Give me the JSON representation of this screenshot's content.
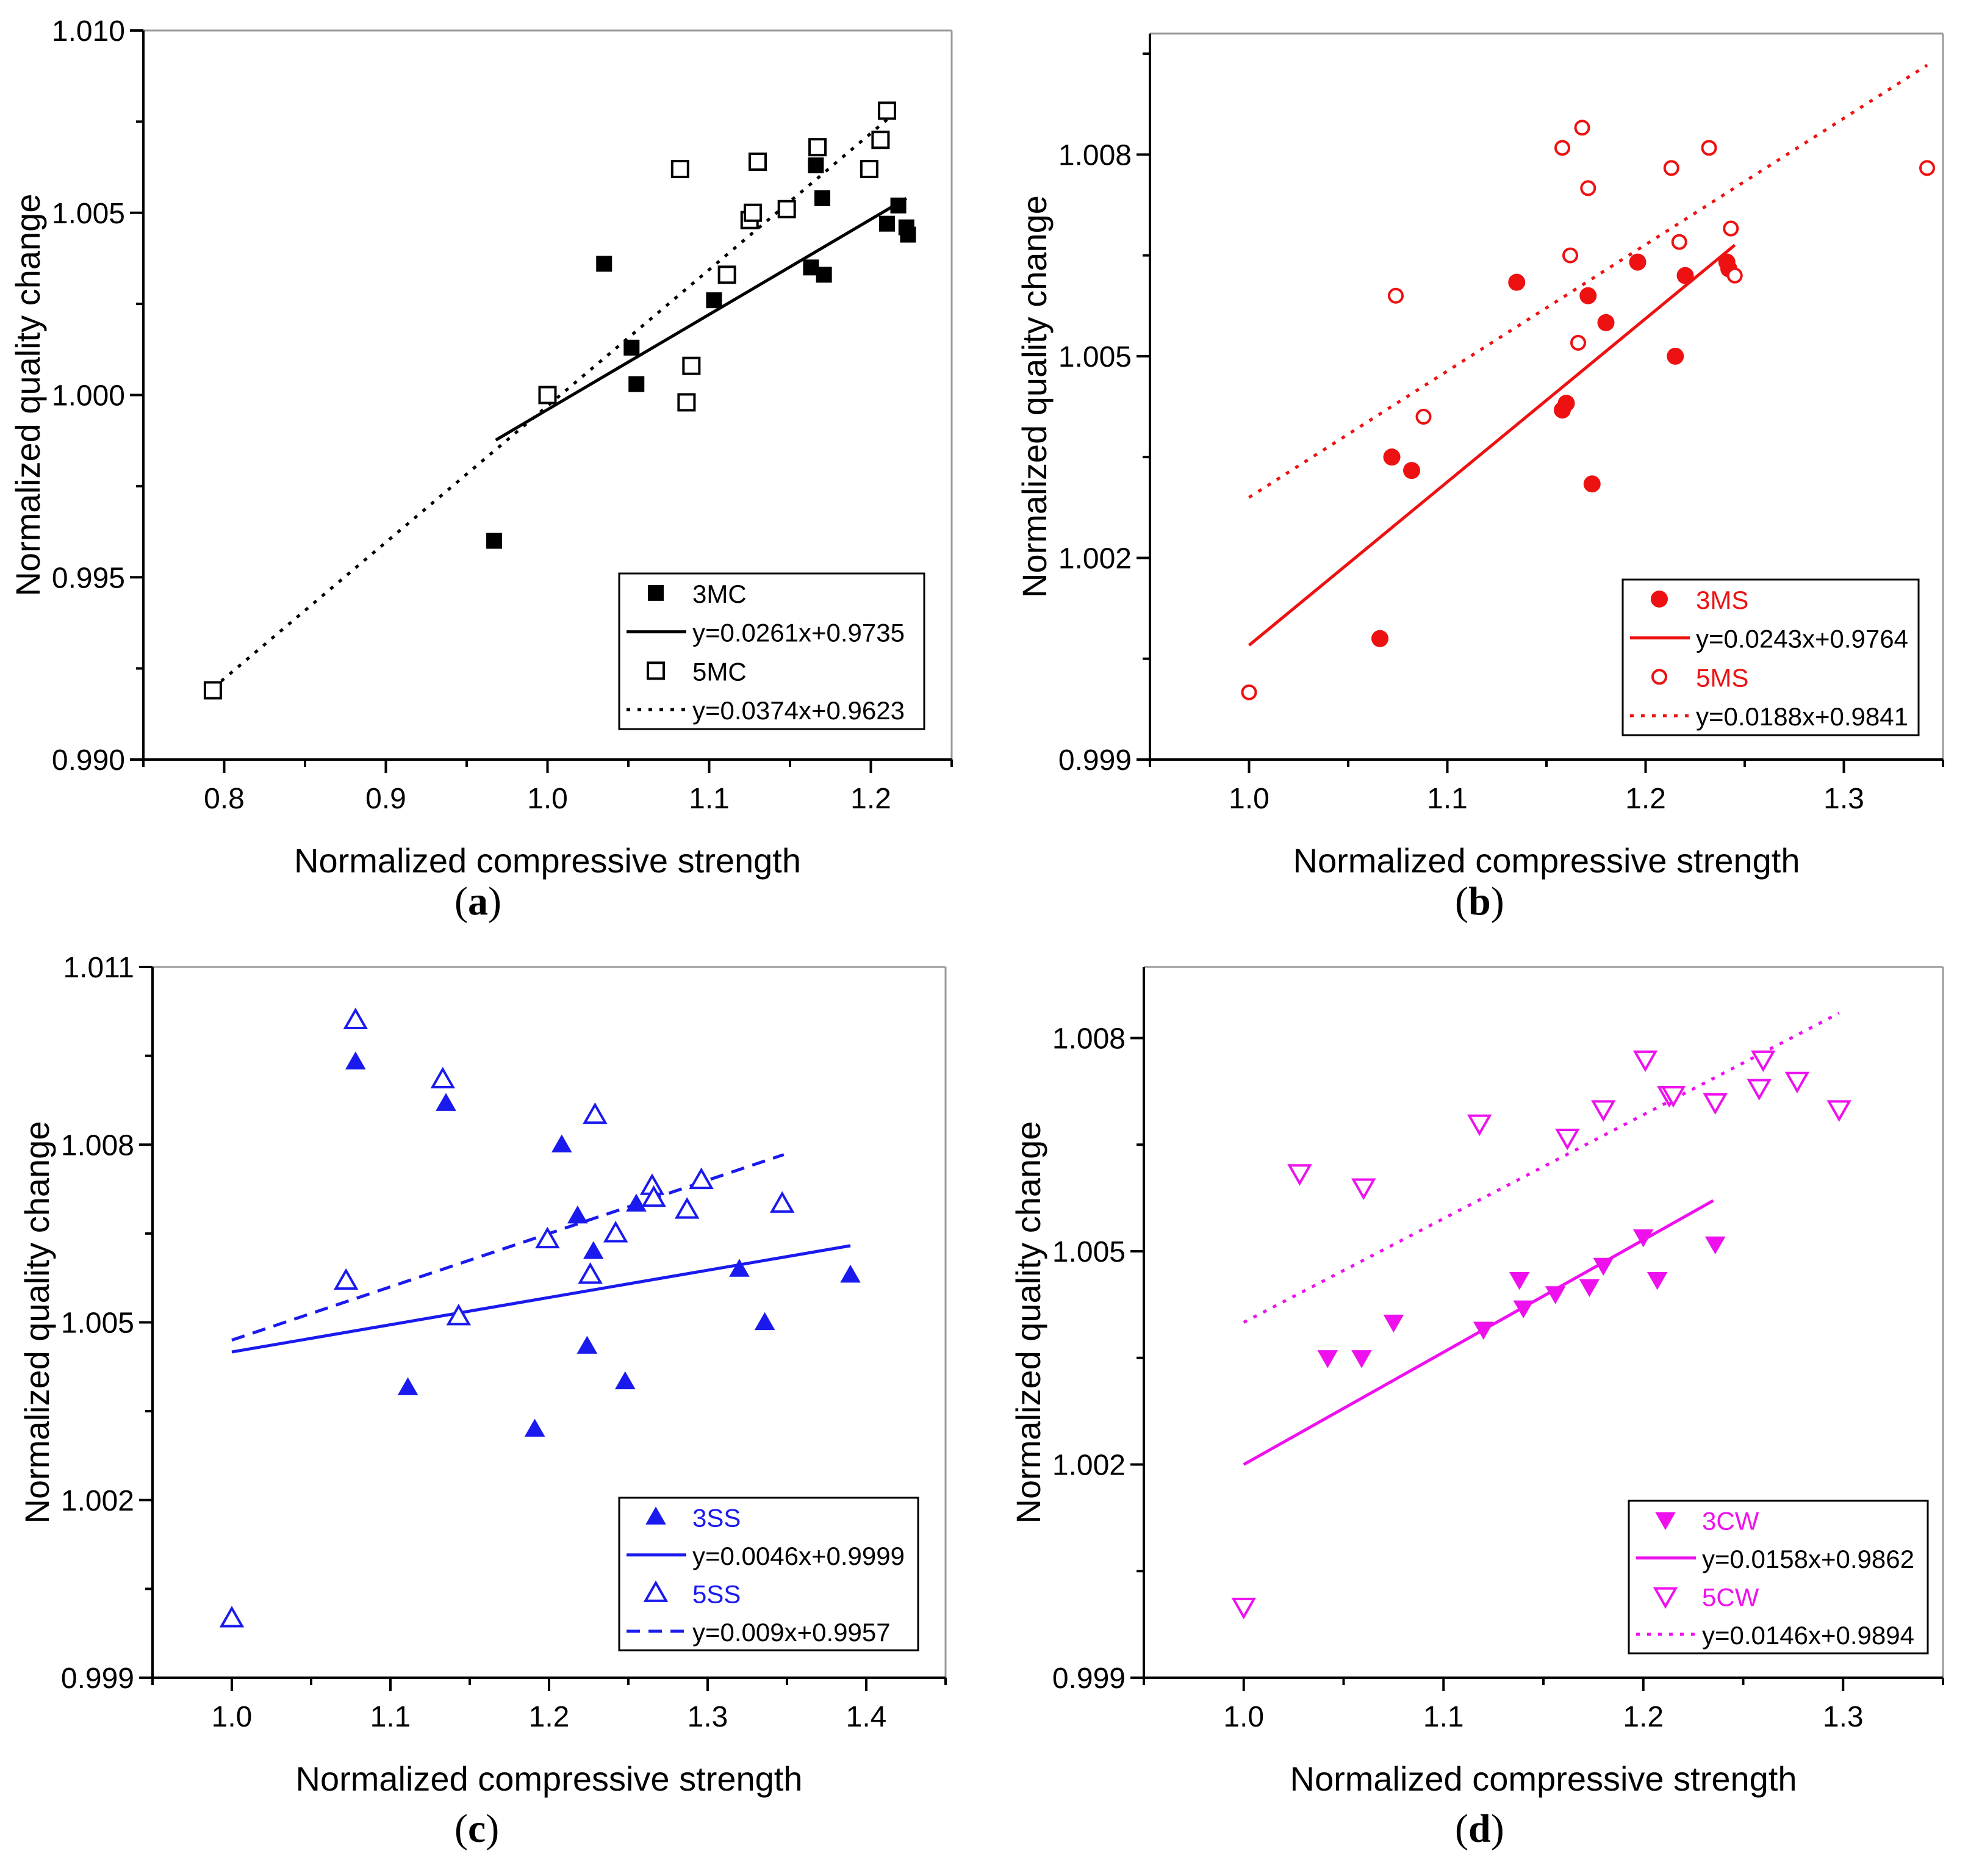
{
  "chart_data": [
    {
      "id": "a",
      "type": "scatter",
      "panel_label": "a",
      "xlabel": "Normalized compressive strength",
      "ylabel": "Normalized quality change",
      "xlim": [
        0.75,
        1.25
      ],
      "ylim": [
        0.99,
        1.01
      ],
      "xticks": [
        {
          "v": 0.8,
          "label": "0.8"
        },
        {
          "v": 0.9,
          "label": "0.9"
        },
        {
          "v": 1.0,
          "label": "1.0"
        },
        {
          "v": 1.1,
          "label": "1.1"
        },
        {
          "v": 1.2,
          "label": "1.2"
        }
      ],
      "yticks": [
        {
          "v": 0.99,
          "label": "0.990"
        },
        {
          "v": 0.995,
          "label": "0.995"
        },
        {
          "v": 1.0,
          "label": "1.000"
        },
        {
          "v": 1.005,
          "label": "1.005"
        },
        {
          "v": 1.01,
          "label": "1.010"
        }
      ],
      "legend_position": "bottom-right",
      "color": "#000000",
      "series": [
        {
          "name": "3MC",
          "marker": "square-filled",
          "fit_label": "y=0.0261x+0.9735",
          "fit_style": "solid",
          "fit_range": [
            0.968,
            1.222
          ],
          "slope": 0.0261,
          "intercept": 0.9735,
          "points": [
            [
              0.967,
              0.996
            ],
            [
              1.035,
              1.0036
            ],
            [
              1.052,
              1.0013
            ],
            [
              1.055,
              1.0003
            ],
            [
              1.103,
              1.0026
            ],
            [
              1.163,
              1.0035
            ],
            [
              1.166,
              1.0063
            ],
            [
              1.17,
              1.0054
            ],
            [
              1.171,
              1.0033
            ],
            [
              1.21,
              1.0047
            ],
            [
              1.217,
              1.0052
            ],
            [
              1.222,
              1.0046
            ],
            [
              1.223,
              1.0044
            ]
          ]
        },
        {
          "name": "5MC",
          "marker": "square-open",
          "fit_label": "y=0.0374x+0.9623",
          "fit_style": "dotted",
          "fit_range": [
            0.793,
            1.21
          ],
          "slope": 0.0374,
          "intercept": 0.9623,
          "points": [
            [
              0.793,
              0.9919
            ],
            [
              1.0,
              1.0
            ],
            [
              1.082,
              1.0062
            ],
            [
              1.086,
              0.9998
            ],
            [
              1.089,
              1.0008
            ],
            [
              1.111,
              1.0033
            ],
            [
              1.125,
              1.0048
            ],
            [
              1.127,
              1.005
            ],
            [
              1.13,
              1.0064
            ],
            [
              1.148,
              1.0051
            ],
            [
              1.167,
              1.0068
            ],
            [
              1.199,
              1.0062
            ],
            [
              1.206,
              1.007
            ],
            [
              1.21,
              1.0078
            ]
          ]
        }
      ]
    },
    {
      "id": "b",
      "type": "scatter",
      "panel_label": "b",
      "xlabel": "Normalized compressive strength",
      "ylabel": "Normalized quality change",
      "xlim": [
        0.95,
        1.35
      ],
      "ylim": [
        0.999,
        1.0098
      ],
      "xticks": [
        {
          "v": 1.0,
          "label": "1.0"
        },
        {
          "v": 1.1,
          "label": "1.1"
        },
        {
          "v": 1.2,
          "label": "1.2"
        },
        {
          "v": 1.3,
          "label": "1.3"
        }
      ],
      "yticks": [
        {
          "v": 0.999,
          "label": "0.999"
        },
        {
          "v": 1.002,
          "label": "1.002"
        },
        {
          "v": 1.005,
          "label": "1.005"
        },
        {
          "v": 1.008,
          "label": "1.008"
        }
      ],
      "legend_position": "bottom-right",
      "color": "#ee1111",
      "series": [
        {
          "name": "3MS",
          "marker": "circle-filled",
          "fit_label": "y=0.0243x+0.9764",
          "fit_style": "solid",
          "fit_range": [
            1.0,
            1.245
          ],
          "slope": 0.0243,
          "intercept": 0.9764,
          "points": [
            [
              1.066,
              1.0008
            ],
            [
              1.072,
              1.0035
            ],
            [
              1.082,
              1.0033
            ],
            [
              1.135,
              1.0061
            ],
            [
              1.158,
              1.0042
            ],
            [
              1.16,
              1.0043
            ],
            [
              1.171,
              1.0059
            ],
            [
              1.173,
              1.0031
            ],
            [
              1.18,
              1.0055
            ],
            [
              1.196,
              1.0064
            ],
            [
              1.215,
              1.005
            ],
            [
              1.22,
              1.0062
            ],
            [
              1.241,
              1.0064
            ],
            [
              1.242,
              1.0063
            ]
          ]
        },
        {
          "name": "5MS",
          "marker": "circle-open",
          "fit_label": "y=0.0188x+0.9841",
          "fit_style": "dotted",
          "fit_range": [
            1.0,
            1.342
          ],
          "slope": 0.0188,
          "intercept": 0.9841,
          "points": [
            [
              1.0,
              1.0
            ],
            [
              1.074,
              1.0059
            ],
            [
              1.088,
              1.0041
            ],
            [
              1.158,
              1.0081
            ],
            [
              1.162,
              1.0065
            ],
            [
              1.166,
              1.0052
            ],
            [
              1.168,
              1.0084
            ],
            [
              1.171,
              1.0075
            ],
            [
              1.213,
              1.0078
            ],
            [
              1.217,
              1.0067
            ],
            [
              1.232,
              1.0081
            ],
            [
              1.243,
              1.0069
            ],
            [
              1.245,
              1.0062
            ],
            [
              1.342,
              1.0078
            ]
          ]
        }
      ]
    },
    {
      "id": "c",
      "type": "scatter",
      "panel_label": "c",
      "xlabel": "Normalized compressive strength",
      "ylabel": "Normalized quality change",
      "xlim": [
        0.95,
        1.45
      ],
      "ylim": [
        0.999,
        1.011
      ],
      "xticks": [
        {
          "v": 1.0,
          "label": "1.0"
        },
        {
          "v": 1.1,
          "label": "1.1"
        },
        {
          "v": 1.2,
          "label": "1.2"
        },
        {
          "v": 1.3,
          "label": "1.3"
        },
        {
          "v": 1.4,
          "label": "1.4"
        }
      ],
      "yticks": [
        {
          "v": 0.999,
          "label": "0.999"
        },
        {
          "v": 1.002,
          "label": "1.002"
        },
        {
          "v": 1.005,
          "label": "1.005"
        },
        {
          "v": 1.008,
          "label": "1.008"
        },
        {
          "v": 1.011,
          "label": "1.011"
        }
      ],
      "legend_position": "bottom-right",
      "color": "#1a1aee",
      "series": [
        {
          "name": "3SS",
          "marker": "triangle-up-filled",
          "fit_label": "y=0.0046x+0.9999",
          "fit_style": "solid",
          "fit_range": [
            1.0,
            1.39
          ],
          "slope": 0.0046,
          "intercept": 0.9999,
          "points": [
            [
              1.078,
              1.0094
            ],
            [
              1.111,
              1.0039
            ],
            [
              1.135,
              1.0087
            ],
            [
              1.191,
              1.0032
            ],
            [
              1.208,
              1.008
            ],
            [
              1.218,
              1.0068
            ],
            [
              1.224,
              1.0046
            ],
            [
              1.228,
              1.0062
            ],
            [
              1.248,
              1.004
            ],
            [
              1.255,
              1.007
            ],
            [
              1.32,
              1.0059
            ],
            [
              1.336,
              1.005
            ],
            [
              1.39,
              1.0058
            ]
          ]
        },
        {
          "name": "5SS",
          "marker": "triangle-up-open",
          "fit_label": "y=0.009x+0.9957",
          "fit_style": "dashed",
          "fit_range": [
            1.0,
            1.348
          ],
          "slope": 0.009,
          "intercept": 0.9957,
          "points": [
            [
              1.0,
              1.0
            ],
            [
              1.072,
              1.0057
            ],
            [
              1.078,
              1.0101
            ],
            [
              1.133,
              1.0091
            ],
            [
              1.143,
              1.0051
            ],
            [
              1.199,
              1.0064
            ],
            [
              1.226,
              1.0058
            ],
            [
              1.229,
              1.0085
            ],
            [
              1.242,
              1.0065
            ],
            [
              1.265,
              1.0073
            ],
            [
              1.266,
              1.0071
            ],
            [
              1.287,
              1.0069
            ],
            [
              1.296,
              1.0074
            ],
            [
              1.347,
              1.007
            ]
          ]
        }
      ]
    },
    {
      "id": "d",
      "type": "scatter",
      "panel_label": "d",
      "xlabel": "Normalized compressive strength",
      "ylabel": "Normalized quality change",
      "xlim": [
        0.95,
        1.35
      ],
      "ylim": [
        0.999,
        1.009
      ],
      "xticks": [
        {
          "v": 1.0,
          "label": "1.0"
        },
        {
          "v": 1.1,
          "label": "1.1"
        },
        {
          "v": 1.2,
          "label": "1.2"
        },
        {
          "v": 1.3,
          "label": "1.3"
        }
      ],
      "yticks": [
        {
          "v": 0.999,
          "label": "0.999"
        },
        {
          "v": 1.002,
          "label": "1.002"
        },
        {
          "v": 1.005,
          "label": "1.005"
        },
        {
          "v": 1.008,
          "label": "1.008"
        }
      ],
      "legend_position": "bottom-right",
      "color": "#ee11ee",
      "series": [
        {
          "name": "3CW",
          "marker": "triangle-down-filled",
          "fit_label": "y=0.0158x+0.9862",
          "fit_style": "solid",
          "fit_range": [
            1.0,
            1.235
          ],
          "slope": 0.0158,
          "intercept": 0.9862,
          "points": [
            [
              1.042,
              1.0035
            ],
            [
              1.059,
              1.0035
            ],
            [
              1.075,
              1.004
            ],
            [
              1.12,
              1.0039
            ],
            [
              1.138,
              1.0046
            ],
            [
              1.14,
              1.0042
            ],
            [
              1.156,
              1.0044
            ],
            [
              1.173,
              1.0045
            ],
            [
              1.18,
              1.0048
            ],
            [
              1.2,
              1.0052
            ],
            [
              1.207,
              1.0046
            ],
            [
              1.236,
              1.0051
            ]
          ]
        },
        {
          "name": "5CW",
          "marker": "triangle-down-open",
          "fit_label": "y=0.0146x+0.9894",
          "fit_style": "dotted",
          "fit_range": [
            1.0,
            1.298
          ],
          "slope": 0.0146,
          "intercept": 0.9894,
          "points": [
            [
              1.0,
              1.0
            ],
            [
              1.028,
              1.0061
            ],
            [
              1.06,
              1.0059
            ],
            [
              1.118,
              1.0068
            ],
            [
              1.162,
              1.0066
            ],
            [
              1.18,
              1.007
            ],
            [
              1.201,
              1.0077
            ],
            [
              1.213,
              1.0072
            ],
            [
              1.215,
              1.0072
            ],
            [
              1.236,
              1.0071
            ],
            [
              1.258,
              1.0073
            ],
            [
              1.26,
              1.0077
            ],
            [
              1.277,
              1.0074
            ],
            [
              1.298,
              1.007
            ]
          ]
        }
      ]
    }
  ]
}
